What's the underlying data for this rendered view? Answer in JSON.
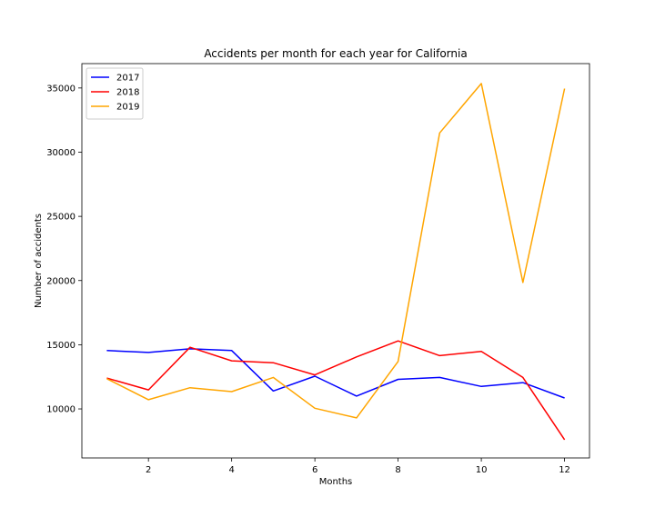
{
  "chart_data": {
    "type": "line",
    "title": "Accidents per month for each year for California",
    "xlabel": "Months",
    "ylabel": "Number of accidents",
    "x": [
      1,
      2,
      3,
      4,
      5,
      6,
      7,
      8,
      9,
      10,
      11,
      12
    ],
    "xticks": [
      2,
      4,
      6,
      8,
      10,
      12
    ],
    "yticks": [
      10000,
      15000,
      20000,
      25000,
      30000,
      35000
    ],
    "xlim": [
      0.4,
      12.6
    ],
    "ylim": [
      6180,
      36900
    ],
    "grid": false,
    "legend_position": "top-left",
    "series": [
      {
        "name": "2017",
        "color": "#0000ff",
        "values": [
          14550,
          14400,
          14680,
          14550,
          11400,
          12550,
          11000,
          12300,
          12450,
          11750,
          12050,
          10850
        ]
      },
      {
        "name": "2018",
        "color": "#ff0000",
        "values": [
          12400,
          11480,
          14800,
          13750,
          13600,
          12650,
          14050,
          15300,
          14150,
          14480,
          12450,
          7600
        ]
      },
      {
        "name": "2019",
        "color": "#ffa500",
        "values": [
          12350,
          10720,
          11650,
          11350,
          12450,
          10050,
          9300,
          13700,
          31500,
          35350,
          19850,
          34950
        ]
      }
    ]
  }
}
